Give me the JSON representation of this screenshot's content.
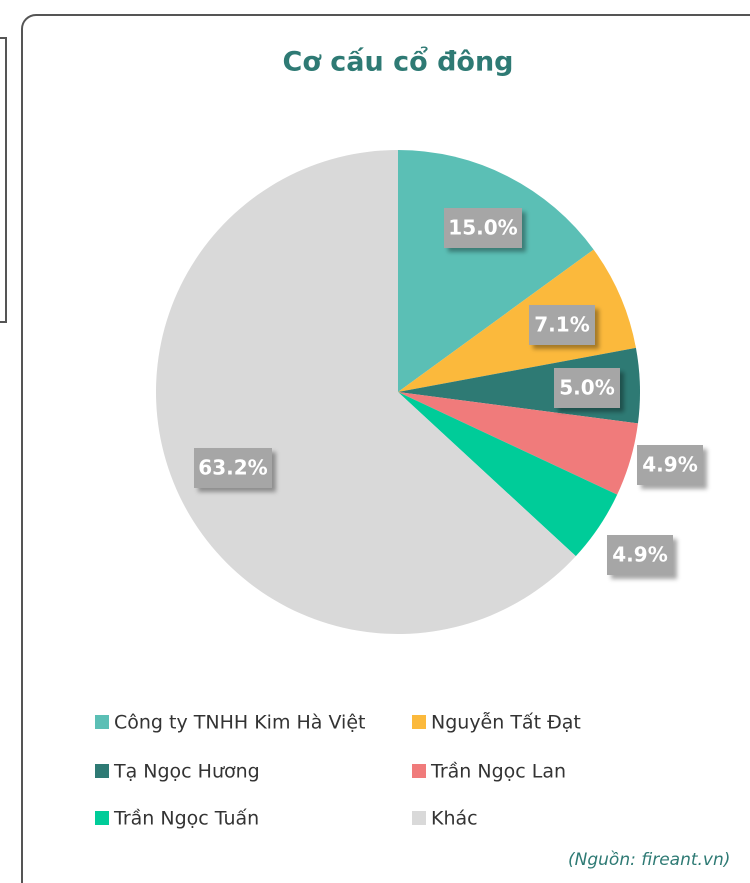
{
  "chart_data": {
    "type": "pie",
    "title": "Cơ cấu cổ đông",
    "categories": [
      "Công ty TNHH Kim Hà Việt",
      "Nguyễn Tất Đạt",
      "Tạ Ngọc Hương",
      "Trần Ngọc Lan",
      "Trần Ngọc Tuấn",
      "Khác"
    ],
    "values": [
      15.0,
      7.1,
      5.0,
      4.9,
      4.9,
      63.2
    ],
    "value_labels": [
      "15.0%",
      "7.1%",
      "5.0%",
      "4.9%",
      "4.9%",
      "63.2%"
    ],
    "colors": [
      "#5bbfb5",
      "#fbb93c",
      "#2e7a74",
      "#f07b7b",
      "#00cc99",
      "#d9d9d9"
    ],
    "annotation": "(Nguồn: fireant.vn)"
  }
}
